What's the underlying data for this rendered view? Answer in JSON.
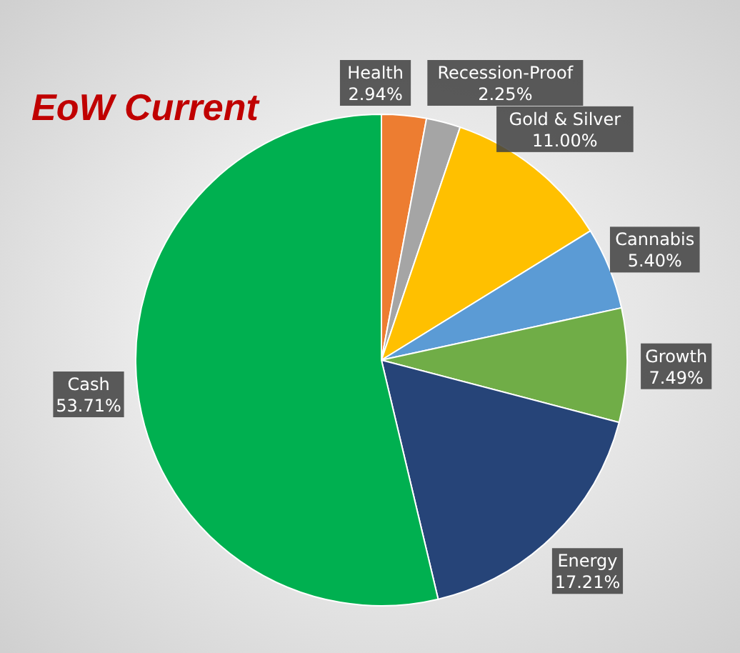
{
  "chart_data": {
    "type": "pie",
    "title": "EoW Current",
    "categories": [
      "Health",
      "Recession-Proof",
      "Gold & Silver",
      "Cannabis",
      "Growth",
      "Energy",
      "Cash"
    ],
    "values": [
      2.94,
      2.25,
      11.0,
      5.4,
      7.49,
      17.21,
      53.71
    ],
    "colors": [
      "#ed7d31",
      "#a5a5a5",
      "#ffc000",
      "#5b9bd5",
      "#70ad47",
      "#264478",
      "#00b050"
    ],
    "value_labels": [
      "2.94%",
      "2.25%",
      "11.00%",
      "5.40%",
      "7.49%",
      "17.21%",
      "53.71%"
    ]
  }
}
